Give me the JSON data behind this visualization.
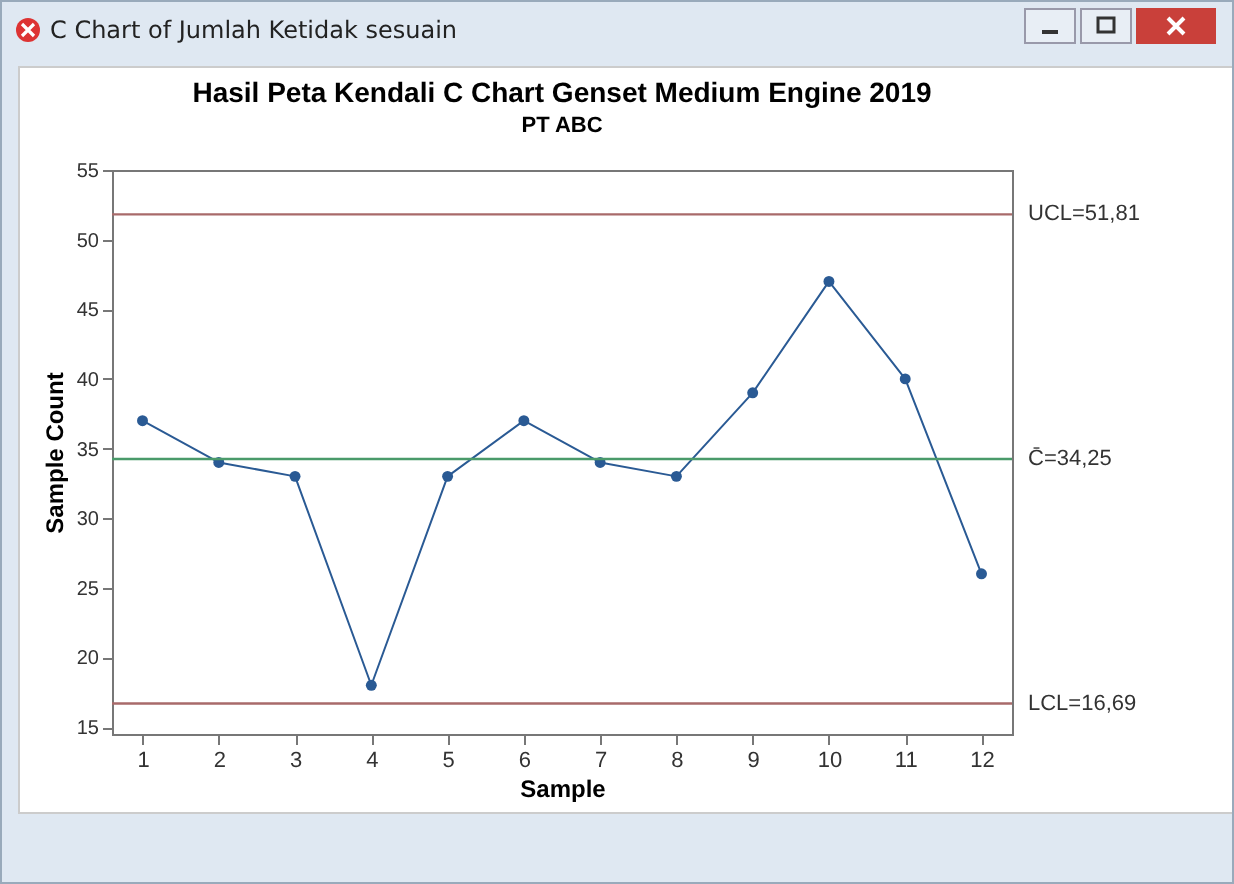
{
  "chart_data": {
    "type": "line",
    "title": "Hasil Peta Kendali C Chart Genset Medium Engine 2019",
    "subtitle": "PT ABC",
    "xlabel": "Sample",
    "ylabel": "Sample Count",
    "annotations": [
      "C Chart of Jumlah Ketidak sesuain"
    ],
    "x": [
      1,
      2,
      3,
      4,
      5,
      6,
      7,
      8,
      9,
      10,
      11,
      12
    ],
    "series": [
      {
        "color": "#2a5a94",
        "values": [
          37,
          34,
          33,
          18,
          33,
          37,
          34,
          33,
          39,
          47,
          40,
          26
        ]
      }
    ],
    "xlim": [
      0.6,
      12.4
    ],
    "xticks": [
      1,
      2,
      3,
      4,
      5,
      6,
      7,
      8,
      9,
      10,
      11,
      12
    ],
    "ylim": [
      14.5,
      55
    ],
    "yticks": [
      15,
      20,
      25,
      30,
      35,
      40,
      45,
      50,
      55
    ],
    "ref_lines": [
      {
        "axis": "y",
        "value": 51.81,
        "label": "UCL=51,81",
        "color": "#a86a6a"
      },
      {
        "axis": "y",
        "value": 34.25,
        "label": "C̄=34,25",
        "color": "#4a9a6a"
      },
      {
        "axis": "y",
        "value": 16.69,
        "label": "LCL=16,69",
        "color": "#a86a6a"
      }
    ],
    "grid": false,
    "marker": "circle",
    "line_style": "solid"
  }
}
